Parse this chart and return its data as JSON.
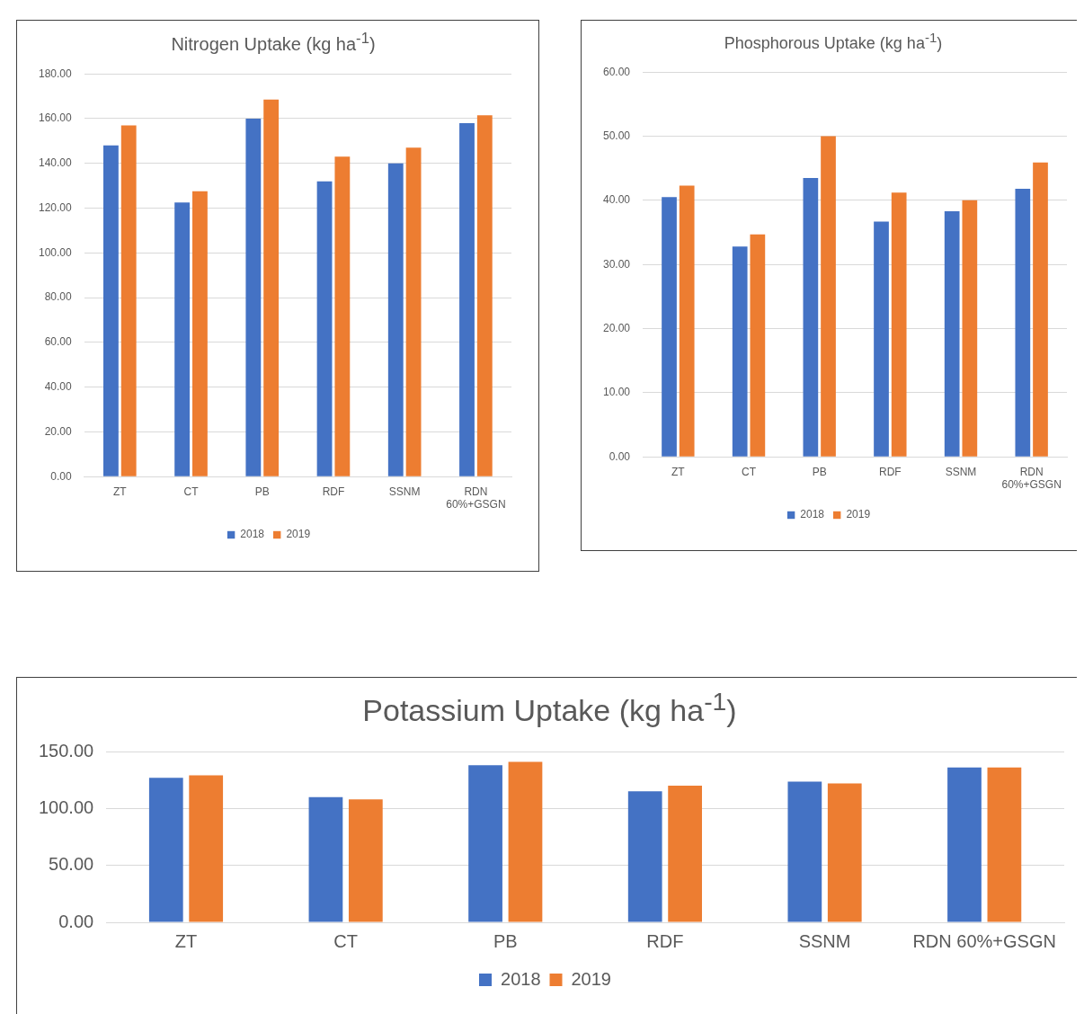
{
  "chart_data": [
    {
      "type": "bar",
      "title": "Nitrogen Uptake (kg ha$^{-1}$)",
      "categories": [
        "ZT",
        "CT",
        "PB",
        "RDF",
        "SSNM",
        "RDN 60%+GSGN"
      ],
      "series": [
        {
          "name": "2018",
          "color": "#4472c4",
          "values": [
            148,
            122.5,
            160,
            132,
            140,
            158
          ]
        },
        {
          "name": "2019",
          "color": "#ed7d31",
          "values": [
            157,
            127.5,
            168.5,
            143,
            147,
            161.5
          ]
        }
      ],
      "ylim": [
        0,
        180
      ],
      "yticks": [
        {
          "value": 0,
          "label": "0.00"
        },
        {
          "value": 20,
          "label": "20.00"
        },
        {
          "value": 40,
          "label": "40.00"
        },
        {
          "value": 60,
          "label": "60.00"
        },
        {
          "value": 80,
          "label": "80.00"
        },
        {
          "value": 100,
          "label": "100.00"
        },
        {
          "value": 120,
          "label": "120.00"
        },
        {
          "value": 140,
          "label": "140.00"
        },
        {
          "value": 160,
          "label": "160.00"
        },
        {
          "value": 180,
          "label": "180.00"
        }
      ],
      "grid": "y",
      "legend": "bottom"
    },
    {
      "type": "bar",
      "title": "Phosphorous Uptake (kg ha$^{-1}$)",
      "categories": [
        "ZT",
        "CT",
        "PB",
        "RDF",
        "SSNM",
        "RDN 60%+GSGN"
      ],
      "series": [
        {
          "name": "2018",
          "color": "#4472c4",
          "values": [
            40.5,
            32.8,
            43.5,
            36.7,
            38.3,
            41.8
          ]
        },
        {
          "name": "2019",
          "color": "#ed7d31",
          "values": [
            42.3,
            34.7,
            50,
            41.2,
            40,
            45.9
          ]
        }
      ],
      "ylim": [
        0,
        60
      ],
      "yticks": [
        {
          "value": 0,
          "label": "0.00"
        },
        {
          "value": 10,
          "label": "10.00"
        },
        {
          "value": 20,
          "label": "20.00"
        },
        {
          "value": 30,
          "label": "30.00"
        },
        {
          "value": 40,
          "label": "40.00"
        },
        {
          "value": 50,
          "label": "50.00"
        },
        {
          "value": 60,
          "label": "60.00"
        }
      ],
      "grid": "y",
      "legend": "bottom"
    },
    {
      "type": "bar",
      "title": "Potassium Uptake (kg ha$^{-1}$)",
      "categories": [
        "ZT",
        "CT",
        "PB",
        "RDF",
        "SSNM",
        "RDN 60%+GSGN"
      ],
      "series": [
        {
          "name": "2018",
          "color": "#4472c4",
          "values": [
            127,
            110,
            138,
            115,
            123.5,
            136
          ]
        },
        {
          "name": "2019",
          "color": "#ed7d31",
          "values": [
            129,
            108,
            141,
            120,
            122,
            136
          ]
        }
      ],
      "ylim": [
        0,
        150
      ],
      "yticks": [
        {
          "value": 0,
          "label": "0.00"
        },
        {
          "value": 50,
          "label": "50.00"
        },
        {
          "value": 100,
          "label": "100.00"
        },
        {
          "value": 150,
          "label": "150.00"
        }
      ],
      "grid": "y",
      "legend": "bottom"
    }
  ]
}
